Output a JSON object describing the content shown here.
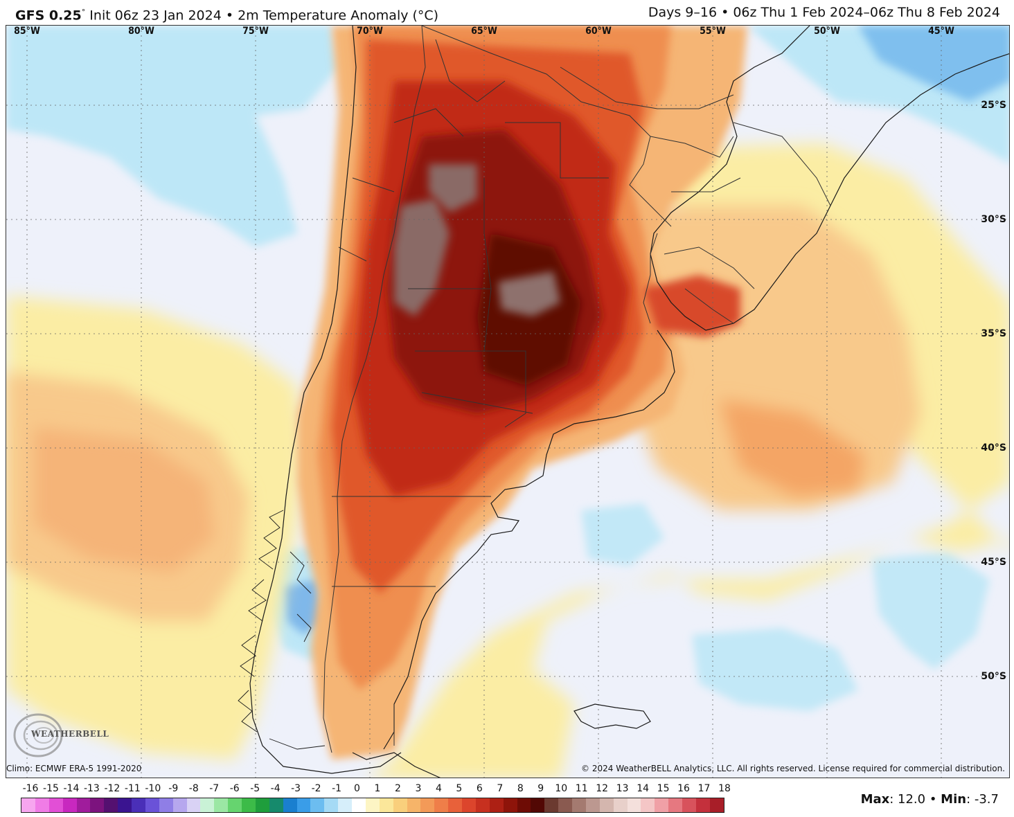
{
  "header": {
    "model": "GFS 0.25",
    "degree_symbol": "°",
    "init_text": " Init 06z 23 Jan 2024 • 2m Temperature Anomaly (°C)",
    "valid_text": "Days 9–16 • 06z Thu 1 Feb 2024–06z Thu 8 Feb 2024"
  },
  "map": {
    "longitude_labels": [
      "85°W",
      "80°W",
      "75°W",
      "70°W",
      "65°W",
      "60°W",
      "55°W",
      "50°W",
      "45°W"
    ],
    "latitude_labels": [
      "25°S",
      "30°S",
      "35°S",
      "40°S",
      "45°S",
      "50°S"
    ],
    "logo_text": "WEATHERBELL",
    "climo_text": "Climo: ECMWF ERA-5 1991-2020",
    "copyright_text": "© 2024 WeatherBELL Analytics, LLC. All rights reserved. License required for commercial distribution.",
    "colors": {
      "ocean_cool": "#f0f2fb",
      "light_blue": "#b9e6f7",
      "mid_blue": "#7fc8ef",
      "yellow": "#fbeea6",
      "light_orange": "#f8c98a",
      "orange": "#f4a062",
      "red_orange": "#e4622f",
      "red": "#c22d14",
      "dark_red": "#8e140a",
      "very_dark_red": "#5e0a05",
      "mauve": "#8a6a66",
      "borders": "#222222"
    }
  },
  "colorbar": {
    "ticks": [
      "-16",
      "-15",
      "-14",
      "-13",
      "-12",
      "-11",
      "-10",
      "-9",
      "-8",
      "-7",
      "-6",
      "-5",
      "-4",
      "-3",
      "-2",
      "-1",
      "0",
      "1",
      "2",
      "3",
      "4",
      "5",
      "6",
      "7",
      "8",
      "9",
      "10",
      "11",
      "12",
      "13",
      "14",
      "15",
      "16",
      "17",
      "18"
    ],
    "colors": [
      "#f7a6ef",
      "#f07ce6",
      "#e24fd6",
      "#c828bf",
      "#a01c9c",
      "#7c137e",
      "#541070",
      "#3a1490",
      "#4a2fb8",
      "#6a52d8",
      "#8f7ee6",
      "#b6a7ee",
      "#d9d2f5",
      "#c9f2d6",
      "#9be7a4",
      "#66d46f",
      "#3cbb48",
      "#1f9e3c",
      "#168a6c",
      "#1a7fcf",
      "#3a9de8",
      "#6cbdf0",
      "#a5daf5",
      "#d6eefa",
      "#ffffff",
      "#fdf5c4",
      "#fbe79a",
      "#f9cf7c",
      "#f6b469",
      "#f39a58",
      "#ef7e49",
      "#e8613a",
      "#dc452c",
      "#c7301f",
      "#ad2014",
      "#8e140a",
      "#6e0c05",
      "#520804",
      "#6b3a30",
      "#8a5a50",
      "#a47a70",
      "#bc9890",
      "#d4b6ae",
      "#e8d0ca",
      "#f4e0dc",
      "#f4c6c6",
      "#f0a0a6",
      "#e67880",
      "#d8525c",
      "#c4303c",
      "#a81e28"
    ],
    "max_label": "Max",
    "max_value": ": 12.0 • ",
    "min_label": "Min",
    "min_value": ": -3.7"
  }
}
